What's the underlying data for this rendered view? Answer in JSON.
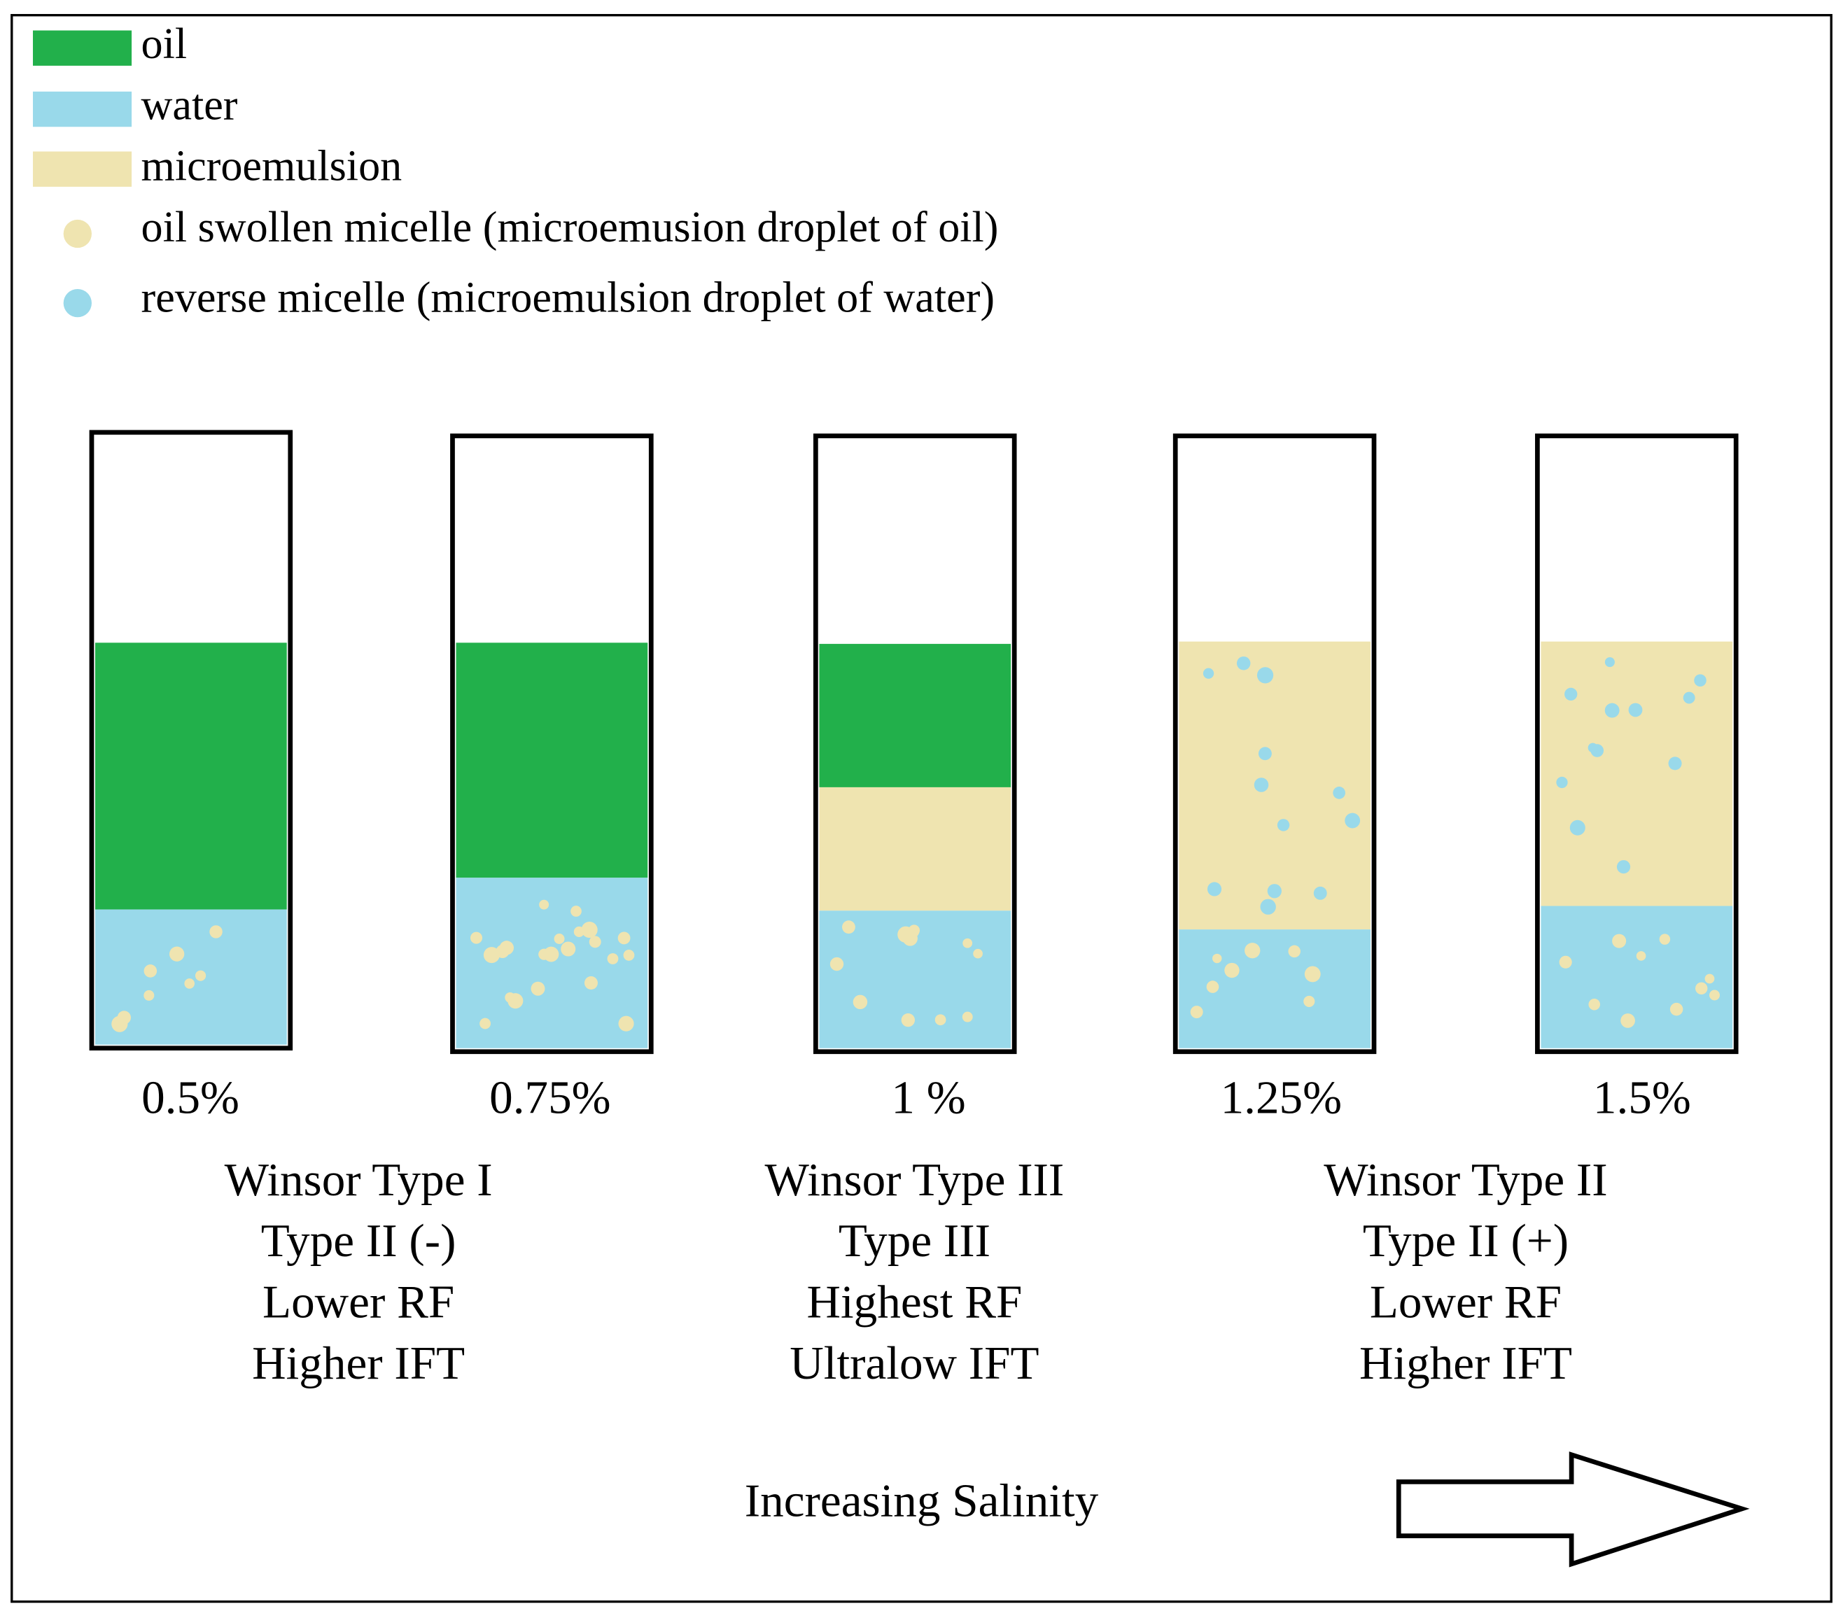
{
  "legend": [
    {
      "label": "oil"
    },
    {
      "label": "water"
    },
    {
      "label": "microemulsion"
    },
    {
      "label": "oil swollen micelle (microemusion droplet of oil)"
    },
    {
      "label": "reverse micelle (microemulsion droplet of water)"
    }
  ],
  "tubes": [
    {
      "label": "0.5%"
    },
    {
      "label": "0.75%"
    },
    {
      "label": "1 %"
    },
    {
      "label": "1.25%"
    },
    {
      "label": "1.5%"
    }
  ],
  "groups": [
    {
      "lines": [
        "Winsor Type I",
        "Type II (-)",
        "Lower RF",
        "Higher IFT"
      ]
    },
    {
      "lines": [
        "Winsor Type III",
        "Type III",
        "Highest RF",
        "Ultralow IFT"
      ]
    },
    {
      "lines": [
        "Winsor Type II",
        "Type II (+)",
        "Lower RF",
        "Higher IFT"
      ]
    }
  ],
  "footer": "Increasing Salinity"
}
